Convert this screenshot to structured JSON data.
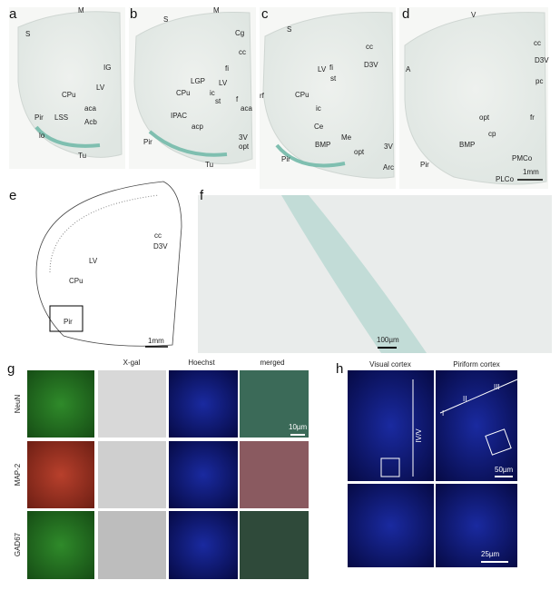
{
  "panels": [
    {
      "letter": "a",
      "labels": [
        "M",
        "S",
        "IG",
        "LV",
        "CPu",
        "aca",
        "Pir",
        "LSS",
        "Acb",
        "lo",
        "Tu"
      ]
    },
    {
      "letter": "b",
      "labels": [
        "M",
        "S",
        "Cg",
        "cc",
        "fi",
        "LV",
        "LGP",
        "CPu",
        "ic",
        "st",
        "f",
        "IPAC",
        "aca",
        "acp",
        "Pir",
        "3V",
        "opt",
        "Tu"
      ]
    },
    {
      "letter": "c",
      "labels": [
        "S",
        "cc",
        "D3V",
        "LV",
        "fi",
        "st",
        "rf",
        "CPu",
        "ic",
        "Ce",
        "Me",
        "BMP",
        "opt",
        "3V",
        "Pir",
        "Arc"
      ]
    },
    {
      "letter": "d",
      "labels": [
        "V",
        "cc",
        "A",
        "D3V",
        "pc",
        "fr",
        "opt",
        "cp",
        "BMP",
        "PMCo",
        "Pir",
        "PLCo"
      ],
      "scale_bar": "1mm"
    },
    {
      "letter": "e",
      "labels": [
        "cc",
        "D3V",
        "LV",
        "CPu",
        "Pir"
      ],
      "scale_bar": "1mm"
    },
    {
      "letter": "f",
      "labels": [],
      "scale_bar": "100µm"
    },
    {
      "letter": "g",
      "columns": [
        "X-gal",
        "Hoechst",
        "merged"
      ],
      "rows": [
        "NeuN",
        "MAP-2",
        "GAD67"
      ],
      "scale_bar": "10µm"
    },
    {
      "letter": "h",
      "columns": [
        "Visual cortex",
        "Piriform cortex"
      ],
      "layers": [
        "I",
        "II",
        "III",
        "IV/V"
      ],
      "scale_bars": [
        "50µm",
        "25µm"
      ]
    }
  ]
}
